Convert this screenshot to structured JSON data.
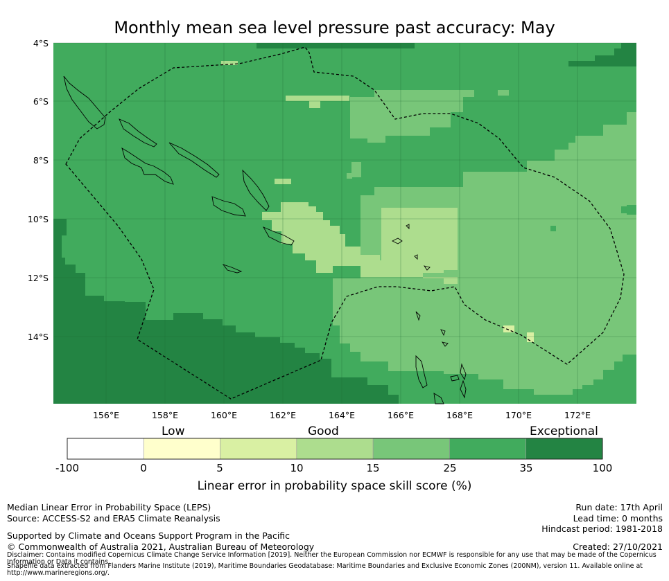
{
  "title": "Monthly mean sea level pressure past accuracy: May",
  "map": {
    "lat_labels": [
      "4°S",
      "6°S",
      "8°S",
      "10°S",
      "12°S",
      "14°S"
    ],
    "lon_labels": [
      "156°E",
      "158°E",
      "160°E",
      "162°E",
      "164°E",
      "166°E",
      "168°E",
      "170°E",
      "172°E"
    ],
    "extent": {
      "lon": [
        154.2,
        174.0
      ],
      "lat": [
        -16.3,
        -4.0
      ]
    },
    "gridlines": true
  },
  "colorbar": {
    "band_labels": [
      "Low",
      "Good",
      "Exceptional"
    ],
    "ticks": [
      "-100",
      "0",
      "5",
      "10",
      "15",
      "25",
      "35",
      "100"
    ],
    "colors": [
      "#ffffff",
      "#ffffcc",
      "#d9f0a3",
      "#addd8e",
      "#78c679",
      "#41ab5d",
      "#238443"
    ],
    "caption": "Linear error in probability space skill score (%)"
  },
  "footer": {
    "method": "Median Linear Error in Probability Space (LEPS)",
    "source": "Source: ACCESS-S2 and ERA5 Climate Reanalysis",
    "support": "Supported by Climate and Oceans Support Program in the Pacific",
    "copyright": "© Commonwealth of Australia 2021, Australian Bureau of Meteorology",
    "disclaimer_1": "Disclaimer: Contains modified Copernicus Climate Change Service Information [2019]. Neither the European Commission nor ECMWF is responsible for any use that may be made of the Copernicus",
    "disclaimer_2": "Information or Data it contains.",
    "shapefile_1": "Shapefile data extracted from Flanders Marine Institute (2019), Maritime Boundaries Geodatabase: Maritime Boundaries and Exclusive Economic Zones (200NM), version 11. Available online at",
    "shapefile_2": "http://www.marineregions.org/.",
    "run_date": "Run date: 17th April",
    "lead_time": "Lead time: 0 months",
    "hindcast": "Hindcast period: 1981-2018",
    "created": "Created: 27/10/2021"
  }
}
